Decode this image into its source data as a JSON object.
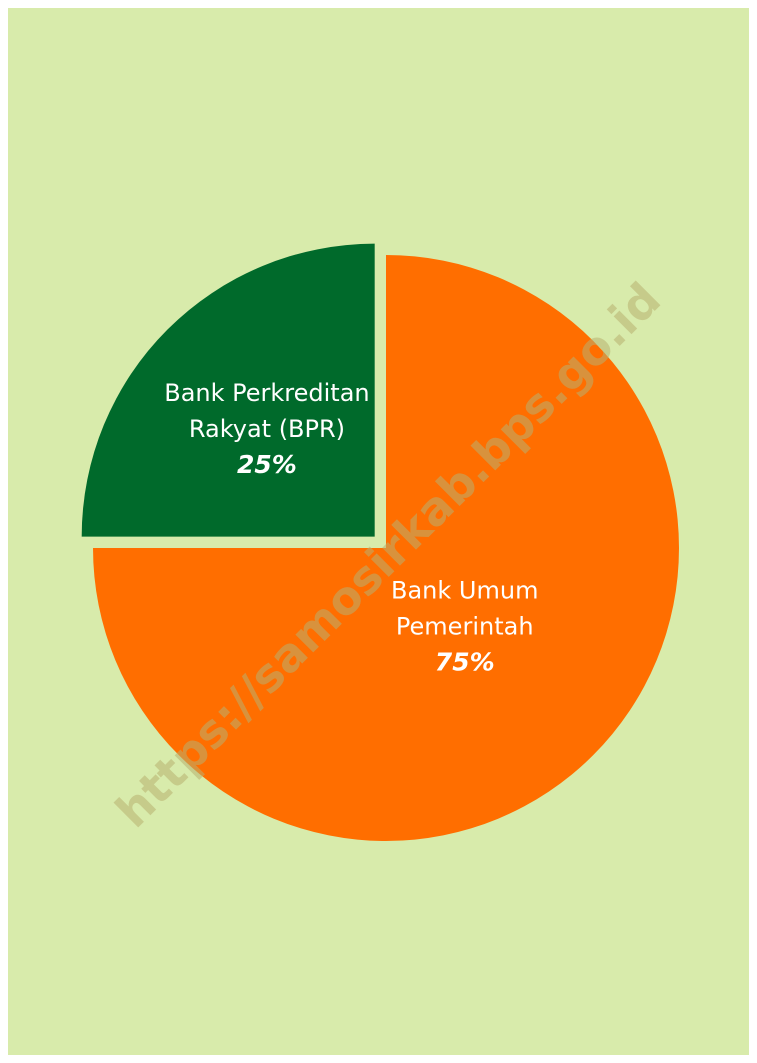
{
  "chart_data": {
    "type": "pie",
    "categories": [
      "Bank Umum Pemerintah",
      "Bank Perkreditan Rakyat (BPR)"
    ],
    "label_lines": [
      [
        "Bank Umum",
        "Pemerintah"
      ],
      [
        "Bank Perkreditan",
        "Rakyat (BPR)"
      ]
    ],
    "values": [
      75,
      25
    ],
    "value_labels": [
      "75%",
      "25%"
    ],
    "colors": [
      "#ff6e00",
      "#006a2b"
    ],
    "exploded": [
      false,
      true
    ],
    "start": "12 o'clock, clockwise",
    "legend": "none"
  },
  "background_color": "#d8ebab",
  "watermark": "https://samosirkab.bps.go.id"
}
